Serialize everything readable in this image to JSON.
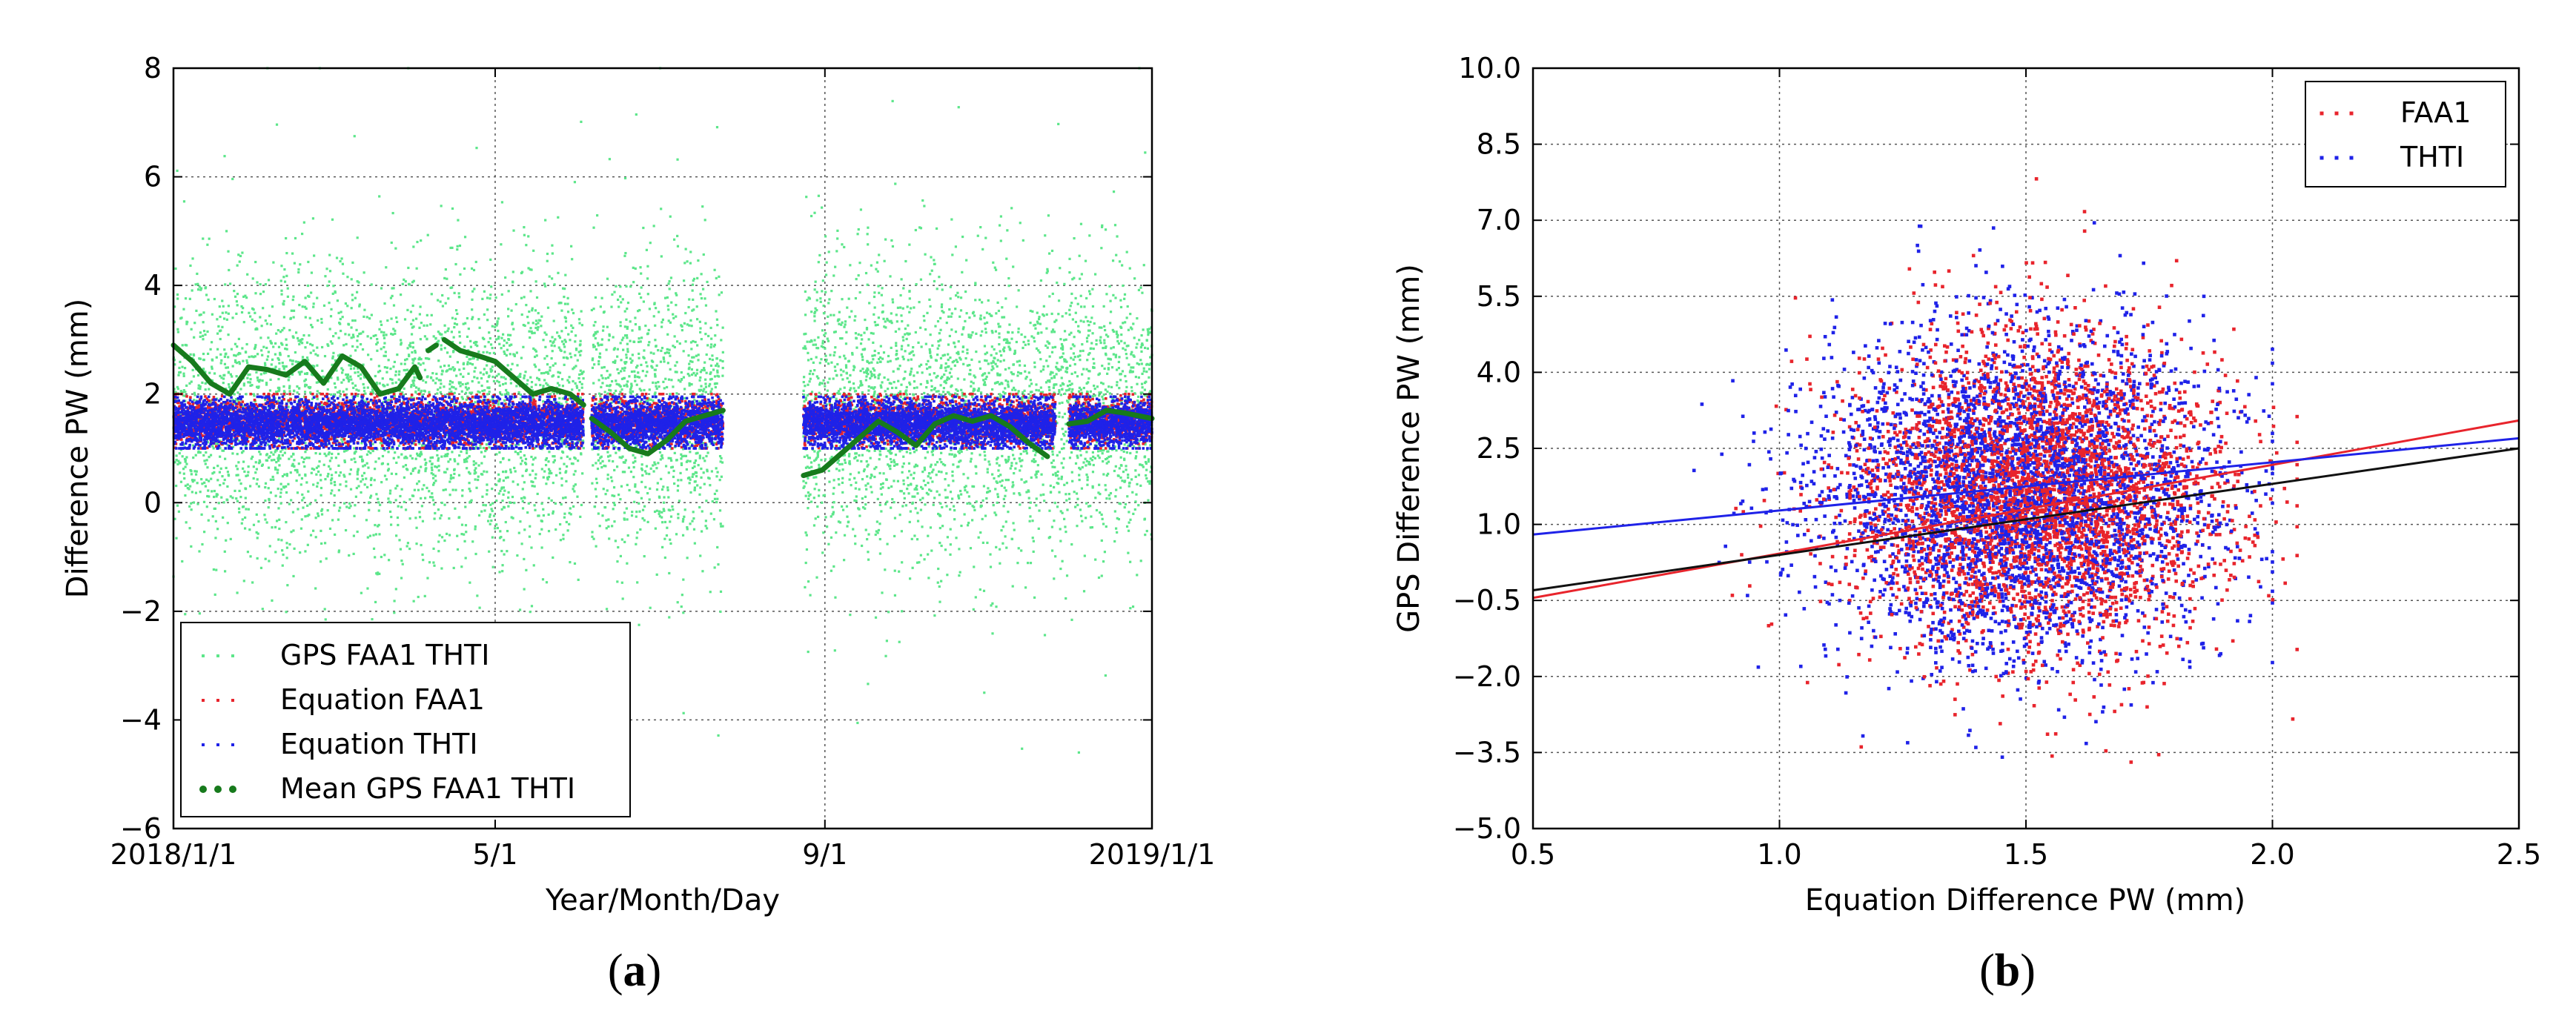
{
  "figure": {
    "panel_a_label_open": "(",
    "panel_a_label_letter": "a",
    "panel_a_label_close": ")",
    "panel_b_label_open": "(",
    "panel_b_label_letter": "b",
    "panel_b_label_close": ")"
  },
  "chart_data": [
    {
      "id": "a",
      "type": "scatter",
      "title": "",
      "xlabel": "Year/Month/Day",
      "ylabel": "Difference PW (mm)",
      "x_ticks": [
        {
          "value": "2018-01-01",
          "label": "2018/1/1"
        },
        {
          "value": "2018-05-01",
          "label": "5/1"
        },
        {
          "value": "2018-09-01",
          "label": "9/1"
        },
        {
          "value": "2019-01-01",
          "label": "2019/1/1"
        }
      ],
      "xlim": [
        "2018-01-01",
        "2019-01-01"
      ],
      "ylim": [
        -6,
        8
      ],
      "y_ticks": [
        -6,
        -4,
        -2,
        0,
        2,
        4,
        6,
        8
      ],
      "y_tick_labels": [
        "−6",
        "−4",
        "−2",
        "0",
        "2",
        "4",
        "6",
        "8"
      ],
      "grid": true,
      "legend_position": "bottom-left",
      "series": [
        {
          "name": "GPS FAA1 THTI",
          "color": "#5ce68a",
          "kind": "points",
          "data_segments": [
            [
              "2018-01-01",
              "2018-06-03"
            ],
            [
              "2018-06-06",
              "2018-07-25"
            ],
            [
              "2018-08-24",
              "2019-01-01"
            ]
          ],
          "y_center": 1.7,
          "y_spread": 2.0,
          "y_min": -4.6,
          "y_max": 8.0
        },
        {
          "name": "Equation FAA1",
          "color": "#e8242c",
          "kind": "points",
          "data_segments": [
            [
              "2018-01-01",
              "2018-06-03"
            ],
            [
              "2018-06-06",
              "2018-07-25"
            ],
            [
              "2018-08-24",
              "2018-11-26"
            ],
            [
              "2018-12-01",
              "2019-01-01"
            ]
          ],
          "y_center": 1.5,
          "y_min": 1.0,
          "y_max": 2.0
        },
        {
          "name": "Equation THTI",
          "color": "#1f22e8",
          "kind": "points",
          "data_segments": [
            [
              "2018-01-01",
              "2018-06-03"
            ],
            [
              "2018-06-06",
              "2018-07-25"
            ],
            [
              "2018-08-24",
              "2018-11-26"
            ],
            [
              "2018-12-01",
              "2019-01-01"
            ]
          ],
          "y_center": 1.45,
          "y_min": 1.0,
          "y_max": 1.95
        },
        {
          "name": "Mean GPS FAA1 THTI",
          "color": "#177a1c",
          "kind": "line",
          "segments": [
            [
              [
                "2018-01-01",
                2.9
              ],
              [
                "2018-01-08",
                2.6
              ],
              [
                "2018-01-15",
                2.2
              ],
              [
                "2018-01-22",
                2.0
              ],
              [
                "2018-01-29",
                2.5
              ],
              [
                "2018-02-05",
                2.45
              ],
              [
                "2018-02-12",
                2.35
              ],
              [
                "2018-02-19",
                2.6
              ],
              [
                "2018-02-26",
                2.2
              ],
              [
                "2018-03-05",
                2.7
              ],
              [
                "2018-03-12",
                2.5
              ],
              [
                "2018-03-19",
                2.0
              ],
              [
                "2018-03-26",
                2.1
              ],
              [
                "2018-04-01",
                2.5
              ],
              [
                "2018-04-03",
                2.3
              ]
            ],
            [
              [
                "2018-04-06",
                2.8
              ],
              [
                "2018-04-09",
                2.9
              ]
            ],
            [
              [
                "2018-04-12",
                3.0
              ],
              [
                "2018-04-18",
                2.8
              ],
              [
                "2018-04-25",
                2.7
              ],
              [
                "2018-05-01",
                2.6
              ],
              [
                "2018-05-08",
                2.3
              ],
              [
                "2018-05-15",
                2.0
              ],
              [
                "2018-05-22",
                2.1
              ],
              [
                "2018-05-29",
                2.0
              ],
              [
                "2018-06-03",
                1.8
              ]
            ],
            [
              [
                "2018-06-06",
                1.55
              ],
              [
                "2018-06-13",
                1.3
              ],
              [
                "2018-06-20",
                1.0
              ],
              [
                "2018-06-27",
                0.9
              ],
              [
                "2018-07-04",
                1.15
              ],
              [
                "2018-07-11",
                1.5
              ],
              [
                "2018-07-18",
                1.6
              ],
              [
                "2018-07-25",
                1.7
              ]
            ],
            [
              [
                "2018-08-24",
                0.5
              ],
              [
                "2018-08-31",
                0.6
              ],
              [
                "2018-09-07",
                0.9
              ],
              [
                "2018-09-14",
                1.2
              ],
              [
                "2018-09-21",
                1.5
              ],
              [
                "2018-09-28",
                1.3
              ],
              [
                "2018-10-05",
                1.05
              ],
              [
                "2018-10-12",
                1.45
              ],
              [
                "2018-10-19",
                1.6
              ],
              [
                "2018-10-26",
                1.5
              ],
              [
                "2018-11-02",
                1.6
              ],
              [
                "2018-11-09",
                1.4
              ],
              [
                "2018-11-16",
                1.1
              ],
              [
                "2018-11-23",
                0.85
              ]
            ],
            [
              [
                "2018-12-01",
                1.45
              ],
              [
                "2018-12-08",
                1.5
              ],
              [
                "2018-12-15",
                1.7
              ],
              [
                "2018-12-22",
                1.65
              ],
              [
                "2019-01-01",
                1.55
              ]
            ]
          ]
        }
      ]
    },
    {
      "id": "b",
      "type": "scatter",
      "title": "",
      "xlabel": "Equation Difference PW (mm)",
      "ylabel": "GPS Difference PW (mm)",
      "xlim": [
        0.5,
        2.5
      ],
      "x_ticks": [
        0.5,
        1.0,
        1.5,
        2.0,
        2.5
      ],
      "x_tick_labels": [
        "0.5",
        "1.0",
        "1.5",
        "2.0",
        "2.5"
      ],
      "ylim": [
        -5.0,
        10.0
      ],
      "y_ticks": [
        -5.0,
        -3.5,
        -2.0,
        -0.5,
        1.0,
        2.5,
        4.0,
        5.5,
        7.0,
        8.5,
        10.0
      ],
      "y_tick_labels": [
        "−5.0",
        "−3.5",
        "−2.0",
        "−0.5",
        "1.0",
        "2.5",
        "4.0",
        "5.5",
        "7.0",
        "8.5",
        "10.0"
      ],
      "grid": true,
      "legend_position": "top-right",
      "series": [
        {
          "name": "FAA1",
          "color": "#e8242c",
          "kind": "points",
          "x_center": 1.52,
          "x_spread": 0.22,
          "y_center": 1.6,
          "y_spread": 1.8,
          "x_range": [
            0.85,
            2.05
          ],
          "y_range": [
            -4.6,
            8.0
          ]
        },
        {
          "name": "THTI",
          "color": "#1f22e8",
          "kind": "points",
          "x_center": 1.48,
          "x_spread": 0.24,
          "y_center": 1.6,
          "y_spread": 1.9,
          "x_range": [
            0.65,
            2.0
          ],
          "y_range": [
            -4.6,
            8.0
          ]
        }
      ],
      "fit_lines": [
        {
          "color": "#e8242c",
          "points": [
            [
              0.5,
              -0.45
            ],
            [
              2.5,
              3.05
            ]
          ]
        },
        {
          "color": "#1f22e8",
          "points": [
            [
              0.5,
              0.8
            ],
            [
              2.5,
              2.7
            ]
          ]
        },
        {
          "color": "#111111",
          "points": [
            [
              0.5,
              -0.3
            ],
            [
              2.5,
              2.5
            ]
          ]
        }
      ]
    }
  ]
}
